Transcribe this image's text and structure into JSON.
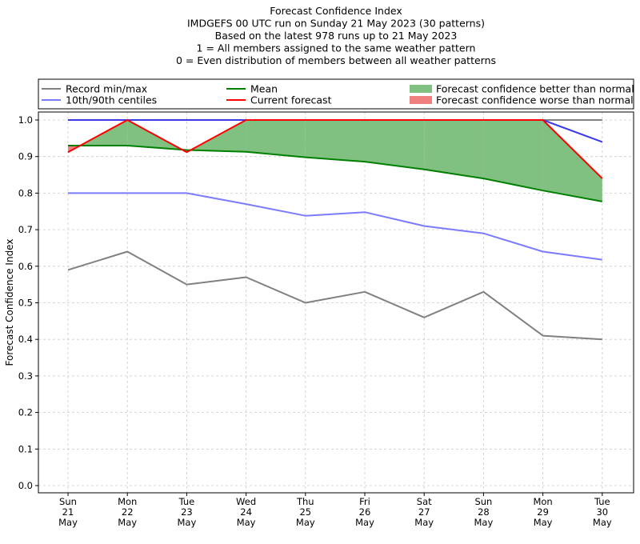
{
  "chart_data": {
    "type": "line",
    "title_lines": [
      "Forecast Confidence Index",
      "IMDGEFS 00 UTC run on Sunday 21 May 2023 (30 patterns)",
      "Based on the latest 978 runs up to 21 May 2023",
      "1 = All members assigned to the same weather pattern",
      "0 = Even distribution of members between all weather patterns"
    ],
    "ylabel": "Forecast Confidence Index",
    "ylim": [
      0,
      1.0
    ],
    "yticks": [
      "0.0",
      "0.1",
      "0.2",
      "0.3",
      "0.4",
      "0.5",
      "0.6",
      "0.7",
      "0.8",
      "0.9",
      "1.0"
    ],
    "grid": true,
    "categories": [
      {
        "day": "Sun",
        "date": "21",
        "month": "May"
      },
      {
        "day": "Mon",
        "date": "22",
        "month": "May"
      },
      {
        "day": "Tue",
        "date": "23",
        "month": "May"
      },
      {
        "day": "Wed",
        "date": "24",
        "month": "May"
      },
      {
        "day": "Thu",
        "date": "25",
        "month": "May"
      },
      {
        "day": "Fri",
        "date": "26",
        "month": "May"
      },
      {
        "day": "Sat",
        "date": "27",
        "month": "May"
      },
      {
        "day": "Sun",
        "date": "28",
        "month": "May"
      },
      {
        "day": "Mon",
        "date": "29",
        "month": "May"
      },
      {
        "day": "Tue",
        "date": "30",
        "month": "May"
      }
    ],
    "series": [
      {
        "name": "Record min/max",
        "key": "record_min",
        "color": "#808080",
        "values": [
          0.59,
          0.64,
          0.55,
          0.57,
          0.5,
          0.53,
          0.46,
          0.53,
          0.41,
          0.4
        ]
      },
      {
        "name": "Record min/max",
        "key": "record_max",
        "color": "#808080",
        "values": [
          1.0,
          1.0,
          1.0,
          1.0,
          1.0,
          1.0,
          1.0,
          1.0,
          1.0,
          1.0
        ]
      },
      {
        "name": "10th/90th centiles",
        "key": "p10",
        "color": "#7b7bff",
        "values": [
          0.8,
          0.8,
          0.8,
          0.77,
          0.738,
          0.748,
          0.71,
          0.69,
          0.64,
          0.618
        ]
      },
      {
        "name": "10th/90th centiles",
        "key": "p90",
        "color": "#3a3ae8",
        "values": [
          1.0,
          1.0,
          1.0,
          1.0,
          1.0,
          1.0,
          1.0,
          1.0,
          1.0,
          0.94
        ]
      },
      {
        "name": "Mean",
        "key": "mean",
        "color": "#008000",
        "values": [
          0.93,
          0.93,
          0.918,
          0.913,
          0.898,
          0.886,
          0.865,
          0.84,
          0.807,
          0.777
        ]
      },
      {
        "name": "Current forecast",
        "key": "current",
        "color": "#ff0000",
        "values": [
          0.912,
          1.0,
          0.912,
          1.0,
          1.0,
          1.0,
          1.0,
          1.0,
          1.0,
          0.84
        ]
      }
    ],
    "legend": {
      "placement": "top",
      "entries": [
        {
          "label": "Record min/max",
          "kind": "line",
          "color": "#808080"
        },
        {
          "label": "Mean",
          "kind": "line",
          "color": "#008000"
        },
        {
          "label": "Forecast confidence better than normal",
          "kind": "patch",
          "color": "#80c080"
        },
        {
          "label": "10th/90th centiles",
          "kind": "line",
          "color": "#7b7bff"
        },
        {
          "label": "Current forecast",
          "kind": "line",
          "color": "#ff0000"
        },
        {
          "label": "Forecast confidence worse than normal",
          "kind": "patch",
          "color": "#f08080"
        }
      ]
    },
    "fill_better_color": "#80c080",
    "fill_worse_color": "#f08080"
  }
}
